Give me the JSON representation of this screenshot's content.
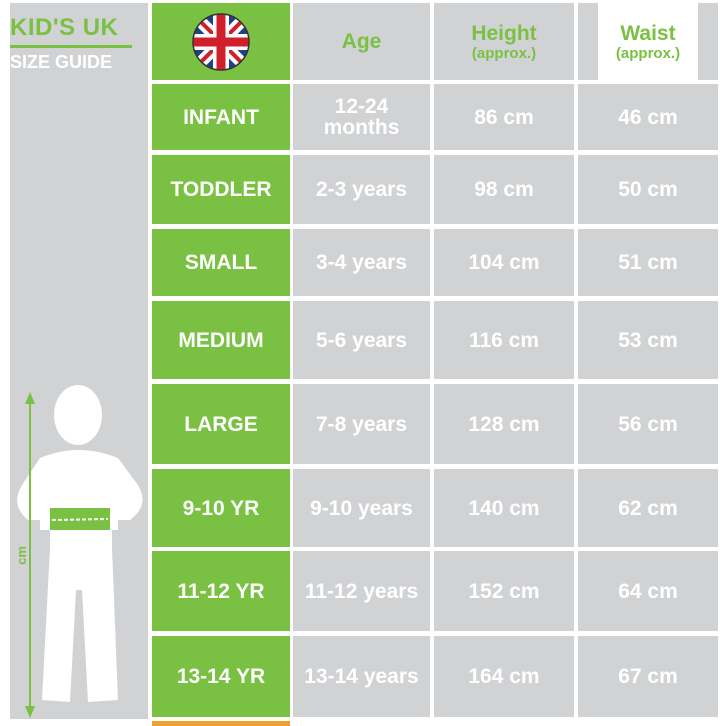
{
  "title": {
    "line1": "KID'S UK",
    "line2": "SIZE GUIDE"
  },
  "figure_label": "cm",
  "colors": {
    "accent": "#7ac143",
    "cell": "#d1d2d4",
    "text": "#ffffff"
  },
  "header": {
    "flag_icon": "uk-flag-icon",
    "age": "Age",
    "height": "Height",
    "height_sub": "(approx.)",
    "waist": "Waist",
    "waist_sub": "(approx.)"
  },
  "rows": [
    {
      "size": "INFANT",
      "age": "12-24 months",
      "height": "86 cm",
      "waist": "46 cm"
    },
    {
      "size": "TODDLER",
      "age": "2-3 years",
      "height": "98 cm",
      "waist": "50 cm"
    },
    {
      "size": "SMALL",
      "age": "3-4 years",
      "height": "104 cm",
      "waist": "51 cm"
    },
    {
      "size": "MEDIUM",
      "age": "5-6 years",
      "height": "116 cm",
      "waist": "53 cm"
    },
    {
      "size": "LARGE",
      "age": "7-8 years",
      "height": "128 cm",
      "waist": "56 cm"
    },
    {
      "size": "9-10 YR",
      "age": "9-10 years",
      "height": "140 cm",
      "waist": "62 cm"
    },
    {
      "size": "11-12 YR",
      "age": "11-12 years",
      "height": "152 cm",
      "waist": "64 cm"
    },
    {
      "size": "13-14 YR",
      "age": "13-14 years",
      "height": "164 cm",
      "waist": "67 cm"
    }
  ]
}
